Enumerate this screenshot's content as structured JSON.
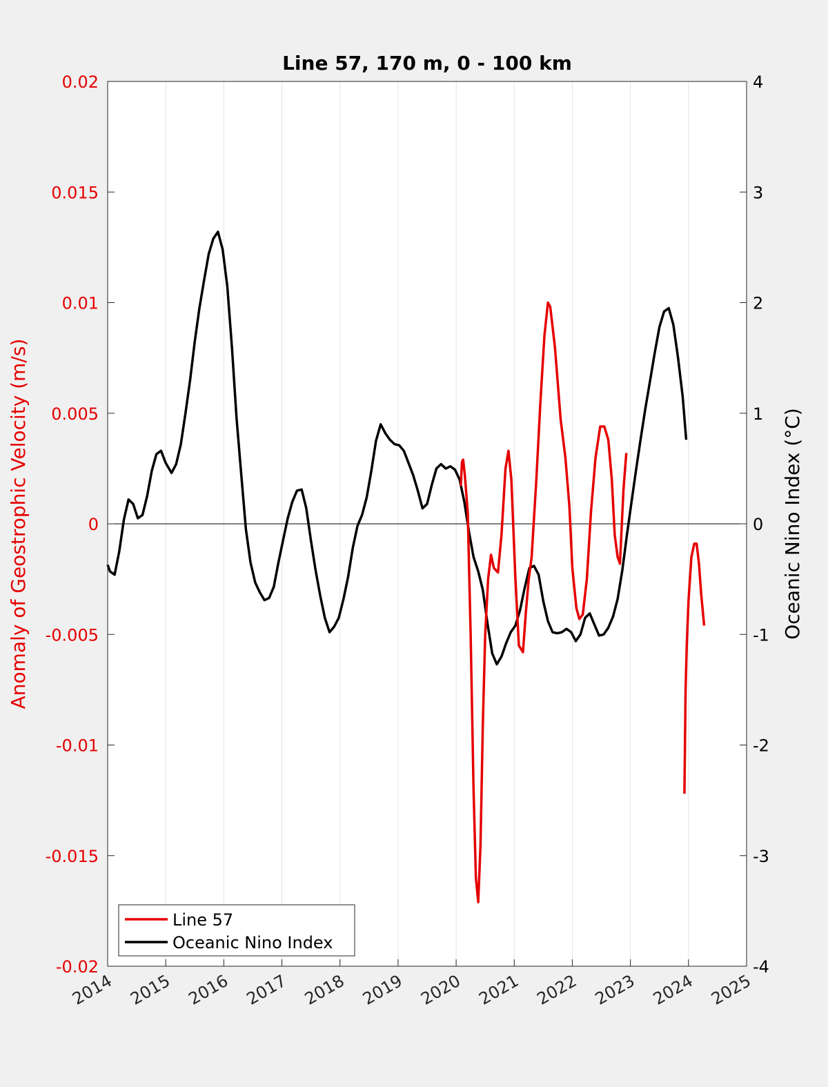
{
  "chart_data": {
    "type": "line",
    "title": "Line 57, 170 m, 0 - 100 km",
    "xlim": [
      2014,
      2025
    ],
    "x_ticks": [
      "2014",
      "2015",
      "2016",
      "2017",
      "2018",
      "2019",
      "2020",
      "2021",
      "2022",
      "2023",
      "2024",
      "2025"
    ],
    "grid": "vertical gridlines at each year",
    "legend_position": "bottom-left",
    "y_left": {
      "label": "Anomaly of Geostrophic Velocity (m/s)",
      "ylim": [
        -0.02,
        0.02
      ],
      "ticks": [
        "-0.02",
        "-0.015",
        "-0.01",
        "-0.005",
        "0",
        "0.005",
        "0.01",
        "0.015",
        "0.02"
      ],
      "color": "#e50000"
    },
    "y_right": {
      "label": "Oceanic Nino Index (°C)",
      "ylim": [
        -4,
        4
      ],
      "ticks": [
        "-4",
        "-3",
        "-2",
        "-1",
        "0",
        "1",
        "2",
        "3",
        "4"
      ],
      "color": "#000000"
    },
    "series": [
      {
        "name": "Line 57",
        "axis": "left",
        "color": "#e50000",
        "segments": [
          [
            [
              2020.08,
              0.0017
            ],
            [
              2020.1,
              0.0028
            ],
            [
              2020.12,
              0.0029
            ],
            [
              2020.15,
              0.0022
            ],
            [
              2020.2,
              0.0005
            ],
            [
              2020.25,
              -0.005
            ],
            [
              2020.3,
              -0.012
            ],
            [
              2020.34,
              -0.016
            ],
            [
              2020.38,
              -0.0171
            ],
            [
              2020.42,
              -0.0145
            ],
            [
              2020.46,
              -0.009
            ],
            [
              2020.5,
              -0.005
            ],
            [
              2020.55,
              -0.0025
            ],
            [
              2020.6,
              -0.0014
            ],
            [
              2020.65,
              -0.002
            ],
            [
              2020.72,
              -0.0022
            ],
            [
              2020.78,
              -0.0005
            ],
            [
              2020.85,
              0.0025
            ],
            [
              2020.9,
              0.0033
            ],
            [
              2020.95,
              0.002
            ],
            [
              2021.02,
              -0.0025
            ],
            [
              2021.08,
              -0.0055
            ],
            [
              2021.15,
              -0.0058
            ],
            [
              2021.2,
              -0.004
            ],
            [
              2021.25,
              -0.0025
            ],
            [
              2021.3,
              -0.0015
            ],
            [
              2021.38,
              0.002
            ],
            [
              2021.45,
              0.0055
            ],
            [
              2021.52,
              0.0085
            ],
            [
              2021.58,
              0.01
            ],
            [
              2021.62,
              0.0098
            ],
            [
              2021.7,
              0.008
            ],
            [
              2021.8,
              0.0047
            ],
            [
              2021.88,
              0.003
            ],
            [
              2021.95,
              0.0008
            ],
            [
              2022.0,
              -0.002
            ],
            [
              2022.07,
              -0.0038
            ],
            [
              2022.12,
              -0.0043
            ],
            [
              2022.18,
              -0.0041
            ],
            [
              2022.25,
              -0.0025
            ],
            [
              2022.32,
              0.0005
            ],
            [
              2022.4,
              0.003
            ],
            [
              2022.48,
              0.0044
            ],
            [
              2022.55,
              0.0044
            ],
            [
              2022.62,
              0.0038
            ],
            [
              2022.68,
              0.002
            ],
            [
              2022.73,
              -0.0005
            ],
            [
              2022.78,
              -0.0015
            ],
            [
              2022.82,
              -0.0018
            ],
            [
              2022.88,
              0.0015
            ],
            [
              2022.93,
              0.0032
            ]
          ],
          [
            [
              2023.93,
              -0.0122
            ],
            [
              2023.95,
              -0.0075
            ],
            [
              2023.97,
              -0.0055
            ],
            [
              2024.0,
              -0.0035
            ],
            [
              2024.05,
              -0.0015
            ],
            [
              2024.1,
              -0.0009
            ],
            [
              2024.14,
              -0.0009
            ],
            [
              2024.18,
              -0.0018
            ],
            [
              2024.22,
              -0.0032
            ],
            [
              2024.27,
              -0.0046
            ]
          ]
        ]
      },
      {
        "name": "Oceanic Nino Index",
        "axis": "right",
        "color": "#000000",
        "points": [
          [
            2014.0,
            -0.37
          ],
          [
            2014.04,
            -0.43
          ],
          [
            2014.12,
            -0.46
          ],
          [
            2014.2,
            -0.25
          ],
          [
            2014.28,
            0.04
          ],
          [
            2014.36,
            0.22
          ],
          [
            2014.44,
            0.18
          ],
          [
            2014.52,
            0.05
          ],
          [
            2014.6,
            0.08
          ],
          [
            2014.68,
            0.25
          ],
          [
            2014.76,
            0.48
          ],
          [
            2014.84,
            0.63
          ],
          [
            2014.92,
            0.66
          ],
          [
            2015.0,
            0.55
          ],
          [
            2015.1,
            0.46
          ],
          [
            2015.18,
            0.54
          ],
          [
            2015.26,
            0.72
          ],
          [
            2015.34,
            1.0
          ],
          [
            2015.42,
            1.3
          ],
          [
            2015.5,
            1.65
          ],
          [
            2015.58,
            1.95
          ],
          [
            2015.66,
            2.2
          ],
          [
            2015.74,
            2.44
          ],
          [
            2015.82,
            2.58
          ],
          [
            2015.9,
            2.64
          ],
          [
            2015.98,
            2.48
          ],
          [
            2016.06,
            2.15
          ],
          [
            2016.14,
            1.6
          ],
          [
            2016.22,
            0.95
          ],
          [
            2016.3,
            0.45
          ],
          [
            2016.38,
            -0.05
          ],
          [
            2016.46,
            -0.35
          ],
          [
            2016.54,
            -0.53
          ],
          [
            2016.62,
            -0.62
          ],
          [
            2016.7,
            -0.69
          ],
          [
            2016.78,
            -0.67
          ],
          [
            2016.86,
            -0.57
          ],
          [
            2016.94,
            -0.35
          ],
          [
            2017.02,
            -0.15
          ],
          [
            2017.1,
            0.05
          ],
          [
            2017.18,
            0.2
          ],
          [
            2017.26,
            0.3
          ],
          [
            2017.34,
            0.31
          ],
          [
            2017.42,
            0.14
          ],
          [
            2017.5,
            -0.15
          ],
          [
            2017.58,
            -0.42
          ],
          [
            2017.66,
            -0.65
          ],
          [
            2017.74,
            -0.85
          ],
          [
            2017.82,
            -0.98
          ],
          [
            2017.9,
            -0.93
          ],
          [
            2017.98,
            -0.85
          ],
          [
            2018.06,
            -0.68
          ],
          [
            2018.14,
            -0.48
          ],
          [
            2018.22,
            -0.22
          ],
          [
            2018.3,
            -0.02
          ],
          [
            2018.38,
            0.08
          ],
          [
            2018.46,
            0.24
          ],
          [
            2018.54,
            0.48
          ],
          [
            2018.62,
            0.75
          ],
          [
            2018.7,
            0.9
          ],
          [
            2018.78,
            0.82
          ],
          [
            2018.86,
            0.76
          ],
          [
            2018.94,
            0.72
          ],
          [
            2019.02,
            0.71
          ],
          [
            2019.1,
            0.66
          ],
          [
            2019.18,
            0.55
          ],
          [
            2019.26,
            0.44
          ],
          [
            2019.34,
            0.3
          ],
          [
            2019.42,
            0.14
          ],
          [
            2019.5,
            0.18
          ],
          [
            2019.58,
            0.35
          ],
          [
            2019.66,
            0.5
          ],
          [
            2019.74,
            0.54
          ],
          [
            2019.82,
            0.5
          ],
          [
            2019.9,
            0.52
          ],
          [
            2019.98,
            0.49
          ],
          [
            2020.06,
            0.4
          ],
          [
            2020.14,
            0.2
          ],
          [
            2020.22,
            -0.07
          ],
          [
            2020.3,
            -0.3
          ],
          [
            2020.38,
            -0.43
          ],
          [
            2020.46,
            -0.6
          ],
          [
            2020.54,
            -0.9
          ],
          [
            2020.62,
            -1.17
          ],
          [
            2020.7,
            -1.27
          ],
          [
            2020.78,
            -1.2
          ],
          [
            2020.86,
            -1.08
          ],
          [
            2020.94,
            -0.98
          ],
          [
            2021.02,
            -0.92
          ],
          [
            2021.1,
            -0.78
          ],
          [
            2021.18,
            -0.58
          ],
          [
            2021.26,
            -0.4
          ],
          [
            2021.34,
            -0.38
          ],
          [
            2021.42,
            -0.46
          ],
          [
            2021.5,
            -0.7
          ],
          [
            2021.58,
            -0.88
          ],
          [
            2021.66,
            -0.98
          ],
          [
            2021.74,
            -0.99
          ],
          [
            2021.82,
            -0.98
          ],
          [
            2021.9,
            -0.95
          ],
          [
            2021.98,
            -0.98
          ],
          [
            2022.06,
            -1.06
          ],
          [
            2022.14,
            -1.0
          ],
          [
            2022.22,
            -0.85
          ],
          [
            2022.3,
            -0.81
          ],
          [
            2022.38,
            -0.91
          ],
          [
            2022.46,
            -1.01
          ],
          [
            2022.54,
            -1.0
          ],
          [
            2022.62,
            -0.94
          ],
          [
            2022.7,
            -0.84
          ],
          [
            2022.78,
            -0.68
          ],
          [
            2022.86,
            -0.42
          ],
          [
            2022.94,
            -0.1
          ],
          [
            2023.02,
            0.2
          ],
          [
            2023.1,
            0.5
          ],
          [
            2023.18,
            0.78
          ],
          [
            2023.26,
            1.05
          ],
          [
            2023.34,
            1.3
          ],
          [
            2023.42,
            1.55
          ],
          [
            2023.5,
            1.78
          ],
          [
            2023.58,
            1.92
          ],
          [
            2023.66,
            1.95
          ],
          [
            2023.74,
            1.8
          ],
          [
            2023.82,
            1.5
          ],
          [
            2023.9,
            1.15
          ],
          [
            2023.96,
            0.76
          ]
        ]
      }
    ]
  }
}
